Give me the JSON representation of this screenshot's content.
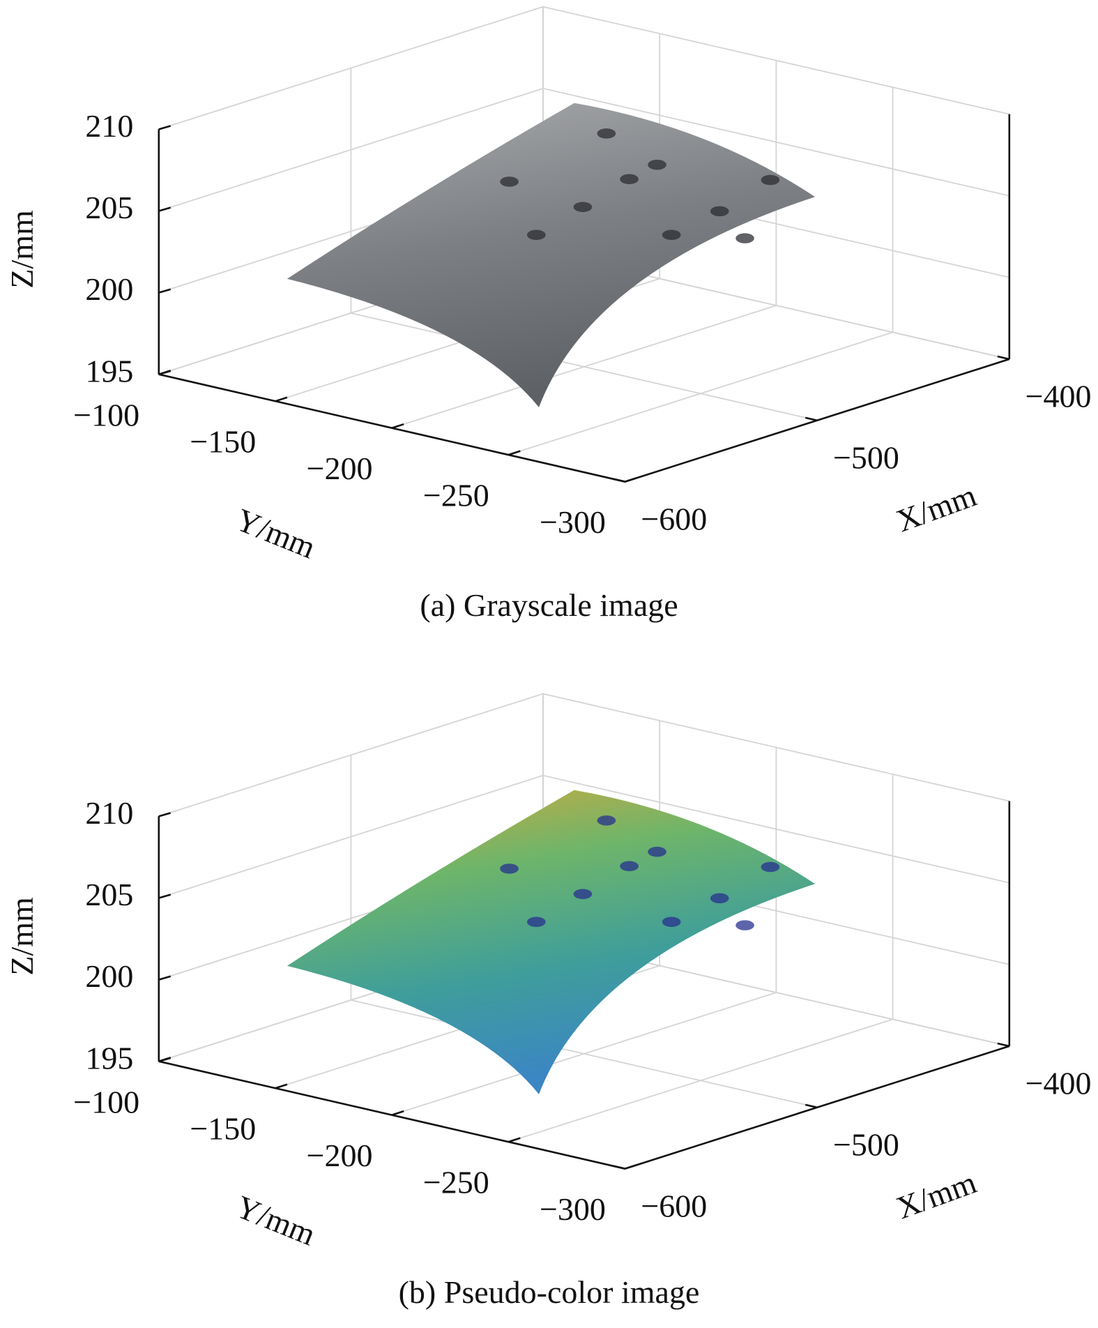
{
  "chart_data": [
    {
      "type": "surface3d",
      "title": "(a) Grayscale image",
      "xlabel": "X/mm",
      "ylabel": "Y/mm",
      "zlabel": "Z/mm",
      "xlim": [
        -600,
        -400
      ],
      "xticks": [
        {
          "value": -600,
          "label": "−600"
        },
        {
          "value": -500,
          "label": "−500"
        },
        {
          "value": -400,
          "label": "−400"
        }
      ],
      "ylim": [
        -100,
        -300
      ],
      "yticks": [
        {
          "value": -100,
          "label": "−100"
        },
        {
          "value": -150,
          "label": "−150"
        },
        {
          "value": -200,
          "label": "−200"
        },
        {
          "value": -250,
          "label": "−250"
        },
        {
          "value": -300,
          "label": "−300"
        }
      ],
      "zlim": [
        195,
        210
      ],
      "zticks": [
        195,
        200,
        205,
        210
      ],
      "grid": true,
      "colormap": [
        "#a9abae",
        "#7d8084",
        "#5e6166"
      ],
      "spot_color": "#2c2e33"
    },
    {
      "type": "surface3d",
      "title": "(b) Pseudo-color image",
      "xlabel": "X/mm",
      "ylabel": "Y/mm",
      "zlabel": "Z/mm",
      "xlim": [
        -600,
        -400
      ],
      "xticks": [
        {
          "value": -600,
          "label": "−600"
        },
        {
          "value": -500,
          "label": "−500"
        },
        {
          "value": -400,
          "label": "−400"
        }
      ],
      "ylim": [
        -100,
        -300
      ],
      "yticks": [
        {
          "value": -100,
          "label": "−100"
        },
        {
          "value": -150,
          "label": "−150"
        },
        {
          "value": -200,
          "label": "−200"
        },
        {
          "value": -250,
          "label": "−250"
        },
        {
          "value": -300,
          "label": "−300"
        }
      ],
      "zlim": [
        195,
        210
      ],
      "zticks": [
        195,
        200,
        205,
        210
      ],
      "grid": true,
      "colormap": [
        "#d9a93a",
        "#6eb56a",
        "#3f9e9a",
        "#3b86c4"
      ],
      "spot_color": "#27308f"
    }
  ]
}
